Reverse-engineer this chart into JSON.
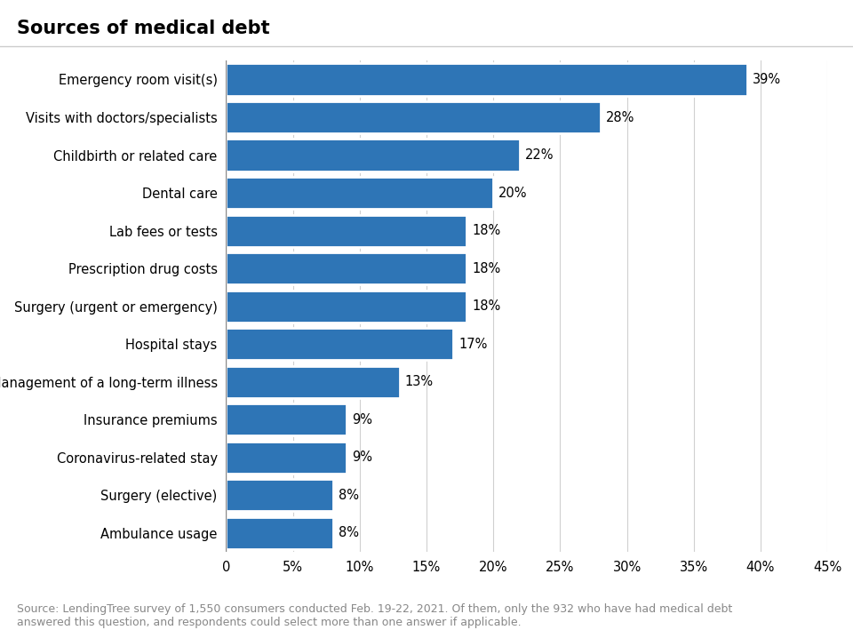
{
  "title": "Sources of medical debt",
  "categories": [
    "Ambulance usage",
    "Surgery (elective)",
    "Coronavirus-related stay",
    "Insurance premiums",
    "Management of a long-term illness",
    "Hospital stays",
    "Surgery (urgent or emergency)",
    "Prescription drug costs",
    "Lab fees or tests",
    "Dental care",
    "Childbirth or related care",
    "Visits with doctors/specialists",
    "Emergency room visit(s)"
  ],
  "values": [
    8,
    8,
    9,
    9,
    13,
    17,
    18,
    18,
    18,
    20,
    22,
    28,
    39
  ],
  "bar_color": "#2E75B6",
  "background_color": "#ffffff",
  "xlim": [
    0,
    45
  ],
  "xticks": [
    0,
    5,
    10,
    15,
    20,
    25,
    30,
    35,
    40,
    45
  ],
  "xtick_labels": [
    "0",
    "5%",
    "10%",
    "15%",
    "20%",
    "25%",
    "30%",
    "35%",
    "40%",
    "45%"
  ],
  "source_text": "Source: LendingTree survey of 1,550 consumers conducted Feb. 19-22, 2021. Of them, only the 932 who have had medical debt\nanswered this question, and respondents could select more than one answer if applicable.",
  "title_fontsize": 15,
  "label_fontsize": 10.5,
  "value_fontsize": 10.5,
  "source_fontsize": 9.0
}
